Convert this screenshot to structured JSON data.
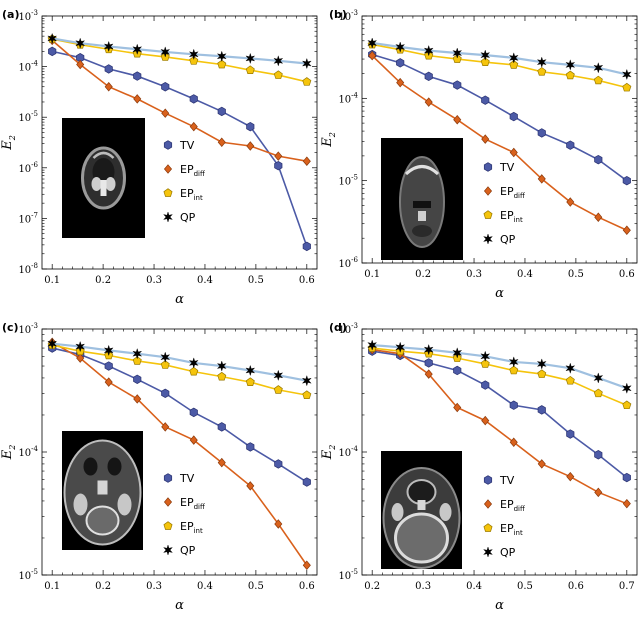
{
  "figure": {
    "series_styles": {
      "TV": {
        "color": "#4c5aa6",
        "stroke": "#2a3270",
        "marker": "hexagon"
      },
      "EPdiff": {
        "color": "#d9611c",
        "stroke": "#8a3a0c",
        "marker": "diamond"
      },
      "EPint": {
        "color": "#f5c40c",
        "stroke": "#9a7a00",
        "marker": "pentagon"
      },
      "QP": {
        "color": "#9fc0e0",
        "stroke": "#000000",
        "marker": "star"
      }
    },
    "legend": [
      {
        "key": "TV",
        "base": "TV",
        "sub": ""
      },
      {
        "key": "EPdiff",
        "base": "EP",
        "sub": "diff"
      },
      {
        "key": "EPint",
        "base": "EP",
        "sub": "int"
      },
      {
        "key": "QP",
        "base": "QP",
        "sub": ""
      }
    ]
  },
  "chart_data": [
    {
      "panel": "(a)",
      "type": "line",
      "xlabel": "α",
      "ylabel": "E",
      "ylabel_sub": "2",
      "yscale": "log",
      "xlim": [
        0.08,
        0.62
      ],
      "ylim": [
        1e-08,
        0.001
      ],
      "xticks": [
        0.1,
        0.2,
        0.3,
        0.4,
        0.5,
        0.6
      ],
      "yticks": [
        {
          "value": 1e-08,
          "base": "10",
          "exp": "-8"
        },
        {
          "value": 1e-07,
          "base": "10",
          "exp": "-7"
        },
        {
          "value": 1e-06,
          "base": "10",
          "exp": "-6"
        },
        {
          "value": 1e-05,
          "base": "10",
          "exp": "-5"
        },
        {
          "value": 0.0001,
          "base": "10",
          "exp": "-4"
        },
        {
          "value": 0.001,
          "base": "10",
          "exp": "-3"
        }
      ],
      "x": [
        0.1,
        0.155,
        0.211,
        0.267,
        0.322,
        0.378,
        0.433,
        0.489,
        0.544,
        0.6
      ],
      "series": [
        {
          "name": "TV",
          "values": [
            0.0002,
            0.00015,
            9e-05,
            6.5e-05,
            4e-05,
            2.3e-05,
            1.3e-05,
            6.5e-06,
            1.1e-06,
            2.8e-08
          ]
        },
        {
          "name": "EPdiff",
          "values": [
            0.00033,
            0.00011,
            4e-05,
            2.3e-05,
            1.2e-05,
            6.5e-06,
            3.2e-06,
            2.7e-06,
            1.7e-06,
            1.35e-06
          ]
        },
        {
          "name": "EPint",
          "values": [
            0.00035,
            0.00027,
            0.00022,
            0.00018,
            0.000155,
            0.00013,
            0.00011,
            8.5e-05,
            6.8e-05,
            5e-05
          ]
        },
        {
          "name": "QP",
          "values": [
            0.00036,
            0.00029,
            0.00025,
            0.00022,
            0.000195,
            0.000175,
            0.00016,
            0.000145,
            0.00013,
            0.000115
          ]
        }
      ]
    },
    {
      "panel": "(b)",
      "type": "line",
      "xlabel": "α",
      "ylabel": "E",
      "ylabel_sub": "2",
      "yscale": "log",
      "xlim": [
        0.08,
        0.62
      ],
      "ylim": [
        1e-06,
        0.001
      ],
      "xticks": [
        0.1,
        0.2,
        0.3,
        0.4,
        0.5,
        0.6
      ],
      "yticks": [
        {
          "value": 1e-06,
          "base": "10",
          "exp": "-6"
        },
        {
          "value": 1e-05,
          "base": "10",
          "exp": "-5"
        },
        {
          "value": 0.0001,
          "base": "10",
          "exp": "-4"
        },
        {
          "value": 0.001,
          "base": "10",
          "exp": "-3"
        }
      ],
      "x": [
        0.1,
        0.155,
        0.211,
        0.267,
        0.322,
        0.378,
        0.433,
        0.489,
        0.544,
        0.6
      ],
      "series": [
        {
          "name": "TV",
          "values": [
            0.00034,
            0.00027,
            0.000185,
            0.000145,
            9.5e-05,
            6e-05,
            3.8e-05,
            2.7e-05,
            1.8e-05,
            1e-05
          ]
        },
        {
          "name": "EPdiff",
          "values": [
            0.00033,
            0.000155,
            9e-05,
            5.5e-05,
            3.2e-05,
            2.2e-05,
            1.05e-05,
            5.5e-06,
            3.6e-06,
            2.5e-06
          ]
        },
        {
          "name": "EPint",
          "values": [
            0.00045,
            0.00039,
            0.00033,
            0.0003,
            0.000275,
            0.000255,
            0.00021,
            0.00019,
            0.000165,
            0.000135
          ]
        },
        {
          "name": "QP",
          "values": [
            0.00047,
            0.00042,
            0.00038,
            0.000355,
            0.000335,
            0.00031,
            0.000275,
            0.000255,
            0.000235,
            0.000195
          ]
        }
      ]
    },
    {
      "panel": "(c)",
      "type": "line",
      "xlabel": "α",
      "ylabel": "E",
      "ylabel_sub": "2",
      "yscale": "log",
      "xlim": [
        0.08,
        0.62
      ],
      "ylim": [
        1e-05,
        0.001
      ],
      "xticks": [
        0.1,
        0.2,
        0.3,
        0.4,
        0.5,
        0.6
      ],
      "yticks": [
        {
          "value": 1e-05,
          "base": "10",
          "exp": "-5"
        },
        {
          "value": 0.0001,
          "base": "10",
          "exp": "-4"
        },
        {
          "value": 0.001,
          "base": "10",
          "exp": "-3"
        }
      ],
      "x": [
        0.1,
        0.155,
        0.211,
        0.267,
        0.322,
        0.378,
        0.433,
        0.489,
        0.544,
        0.6
      ],
      "series": [
        {
          "name": "TV",
          "values": [
            0.0007,
            0.00062,
            0.0005,
            0.00039,
            0.0003,
            0.00021,
            0.00016,
            0.00011,
            8e-05,
            5.7e-05
          ]
        },
        {
          "name": "EPdiff",
          "values": [
            0.00078,
            0.00058,
            0.00037,
            0.00027,
            0.00016,
            0.000125,
            8.2e-05,
            5.3e-05,
            2.6e-05,
            1.2e-05
          ]
        },
        {
          "name": "EPint",
          "values": [
            0.00074,
            0.00066,
            0.00061,
            0.00055,
            0.00051,
            0.00045,
            0.00041,
            0.00037,
            0.00032,
            0.00029
          ]
        },
        {
          "name": "QP",
          "values": [
            0.00076,
            0.00072,
            0.00067,
            0.00063,
            0.00059,
            0.00053,
            0.0005,
            0.00046,
            0.00042,
            0.00038
          ]
        }
      ]
    },
    {
      "panel": "(d)",
      "type": "line",
      "xlabel": "α",
      "ylabel": "E",
      "ylabel_sub": "2",
      "yscale": "log",
      "xlim": [
        0.18,
        0.72
      ],
      "ylim": [
        1e-05,
        0.001
      ],
      "xticks": [
        0.2,
        0.3,
        0.4,
        0.5,
        0.6,
        0.7
      ],
      "yticks": [
        {
          "value": 1e-05,
          "base": "10",
          "exp": "-5"
        },
        {
          "value": 0.0001,
          "base": "10",
          "exp": "-4"
        },
        {
          "value": 0.001,
          "base": "10",
          "exp": "-3"
        }
      ],
      "x": [
        0.2,
        0.255,
        0.311,
        0.367,
        0.422,
        0.478,
        0.533,
        0.589,
        0.644,
        0.7
      ],
      "series": [
        {
          "name": "TV",
          "values": [
            0.00066,
            0.00061,
            0.00053,
            0.00046,
            0.00035,
            0.00024,
            0.00022,
            0.00014,
            9.5e-05,
            6.2e-05
          ]
        },
        {
          "name": "EPdiff",
          "values": [
            0.00068,
            0.00063,
            0.00043,
            0.00023,
            0.00018,
            0.00012,
            8e-05,
            6.3e-05,
            4.7e-05,
            3.8e-05
          ]
        },
        {
          "name": "EPint",
          "values": [
            0.0007,
            0.00066,
            0.00063,
            0.00058,
            0.00052,
            0.00046,
            0.00043,
            0.00038,
            0.0003,
            0.00024
          ]
        },
        {
          "name": "QP",
          "values": [
            0.00074,
            0.00071,
            0.00068,
            0.00064,
            0.0006,
            0.00054,
            0.00052,
            0.00048,
            0.0004,
            0.00033
          ]
        }
      ]
    }
  ]
}
